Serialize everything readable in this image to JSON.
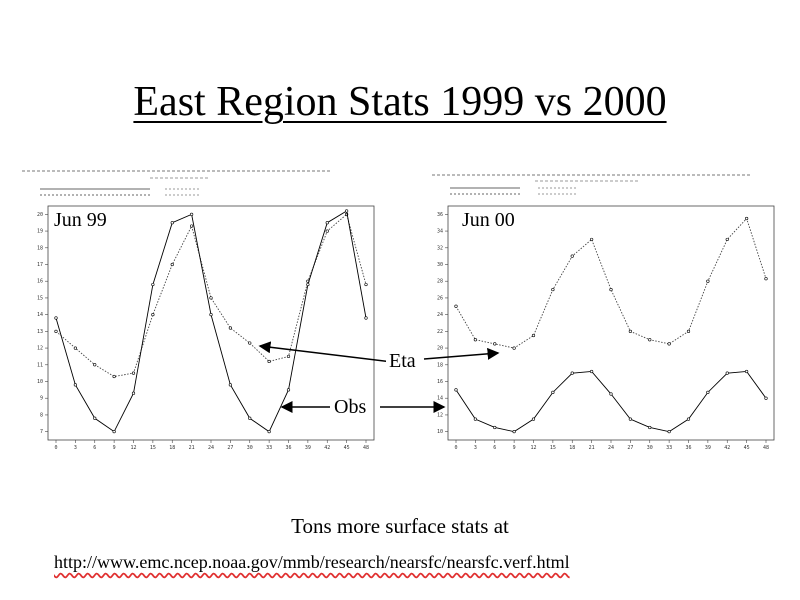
{
  "slide": {
    "title": "East Region Stats 1999 vs 2000",
    "footer_text": "Tons more surface stats at",
    "url": "http://www.emc.ncep.noaa.gov/mmb/research/nearsfc/nearsfc.verf.html",
    "annotations": {
      "eta": "Eta",
      "obs": "Obs"
    }
  },
  "chart_data": [
    {
      "type": "line",
      "panel_label": "Jun 99",
      "x": [
        0,
        3,
        6,
        9,
        12,
        15,
        18,
        21,
        24,
        27,
        30,
        33,
        36,
        39,
        42,
        45,
        48
      ],
      "ylim": [
        6.5,
        20.5
      ],
      "yticks": [
        7,
        8,
        9,
        10,
        11,
        12,
        13,
        14,
        15,
        16,
        17,
        18,
        19,
        20
      ],
      "series": [
        {
          "name": "Eta",
          "style": "dotted",
          "values": [
            13,
            12,
            11,
            10.3,
            10.5,
            14,
            17,
            19.3,
            15,
            13.2,
            12.3,
            11.2,
            11.5,
            16,
            19,
            20,
            15.8
          ]
        },
        {
          "name": "Obs",
          "style": "solid",
          "values": [
            13.8,
            9.8,
            7.8,
            7,
            9.3,
            15.8,
            19.5,
            20,
            14,
            9.8,
            7.8,
            7,
            9.5,
            15.8,
            19.5,
            20.2,
            13.8
          ]
        }
      ]
    },
    {
      "type": "line",
      "panel_label": "Jun 00",
      "x": [
        0,
        3,
        6,
        9,
        12,
        15,
        18,
        21,
        24,
        27,
        30,
        33,
        36,
        39,
        42,
        45,
        48
      ],
      "ylim": [
        9,
        37
      ],
      "yticks": [
        10,
        12,
        14,
        16,
        18,
        20,
        22,
        24,
        26,
        28,
        30,
        32,
        34,
        36
      ],
      "series": [
        {
          "name": "Eta",
          "style": "dotted",
          "values": [
            25,
            21,
            20.5,
            20,
            21.5,
            27,
            31,
            33,
            27,
            22,
            21,
            20.5,
            22,
            28,
            33,
            35.5,
            28.3
          ]
        },
        {
          "name": "Obs",
          "style": "solid",
          "values": [
            15,
            11.5,
            10.5,
            10,
            11.5,
            14.7,
            17,
            17.2,
            14.5,
            11.5,
            10.5,
            10,
            11.5,
            14.7,
            17,
            17.2,
            14
          ]
        }
      ]
    }
  ]
}
